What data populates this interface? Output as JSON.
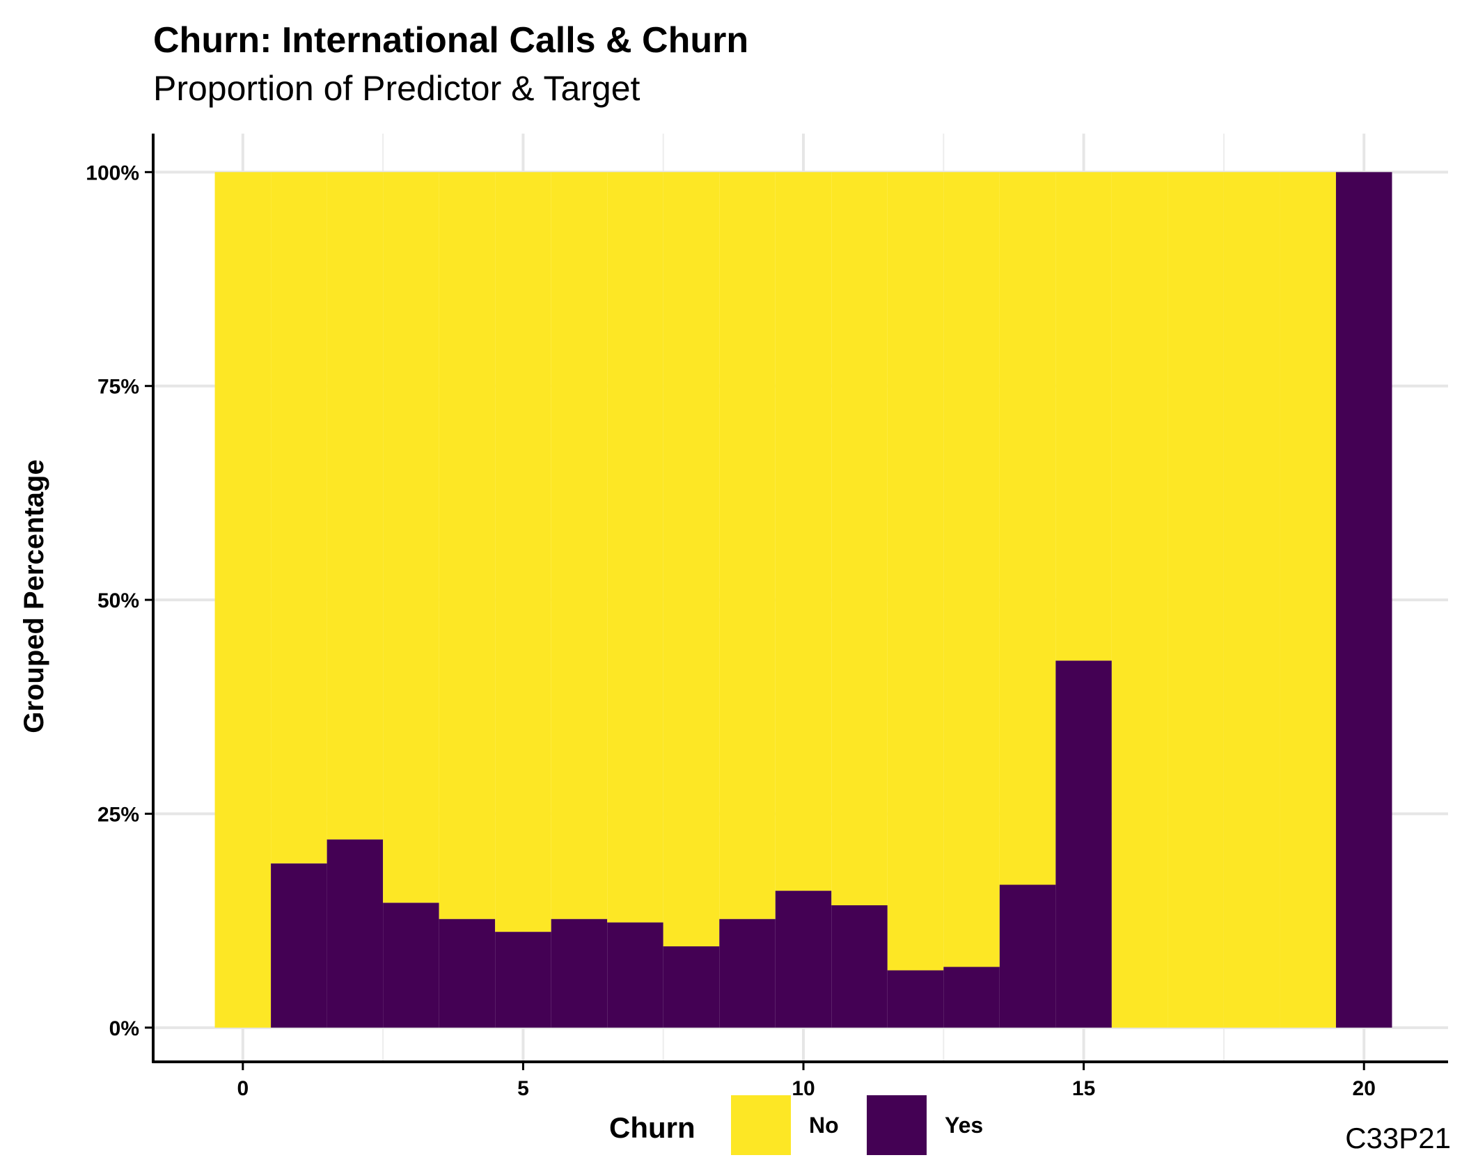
{
  "chart_data": {
    "type": "bar",
    "stacked": true,
    "title": "Churn: International Calls & Churn",
    "subtitle": "Proportion of Predictor & Target",
    "xlabel": "",
    "ylabel": "Grouped Percentage",
    "caption": "C33P21",
    "xlim": [
      -1.6,
      21.5
    ],
    "ylim": [
      -0.04,
      1.045
    ],
    "x_ticks": [
      0,
      5,
      10,
      15,
      20
    ],
    "x_tick_labels": [
      "0",
      "5",
      "10",
      "15",
      "20"
    ],
    "y_ticks": [
      0,
      0.25,
      0.5,
      0.75,
      1.0
    ],
    "y_tick_labels": [
      "0%",
      "25%",
      "50%",
      "75%",
      "100%"
    ],
    "grid": true,
    "legend": {
      "title": "Churn",
      "position": "bottom"
    },
    "x": [
      0,
      1,
      2,
      3,
      4,
      5,
      6,
      7,
      8,
      9,
      10,
      11,
      12,
      13,
      14,
      15,
      16,
      17,
      18,
      19,
      20
    ],
    "series": [
      {
        "name": "No",
        "color": "#FDE725",
        "values": [
          1.0,
          0.808,
          0.78,
          0.854,
          0.873,
          0.888,
          0.873,
          0.877,
          0.905,
          0.873,
          0.84,
          0.857,
          0.933,
          0.929,
          0.833,
          0.571,
          1.0,
          1.0,
          1.0,
          1.0,
          0.0
        ]
      },
      {
        "name": "Yes",
        "color": "#440154",
        "values": [
          0.0,
          0.192,
          0.22,
          0.146,
          0.127,
          0.112,
          0.127,
          0.123,
          0.095,
          0.127,
          0.16,
          0.143,
          0.067,
          0.071,
          0.167,
          0.429,
          0.0,
          0.0,
          0.0,
          0.0,
          1.0
        ]
      }
    ]
  }
}
